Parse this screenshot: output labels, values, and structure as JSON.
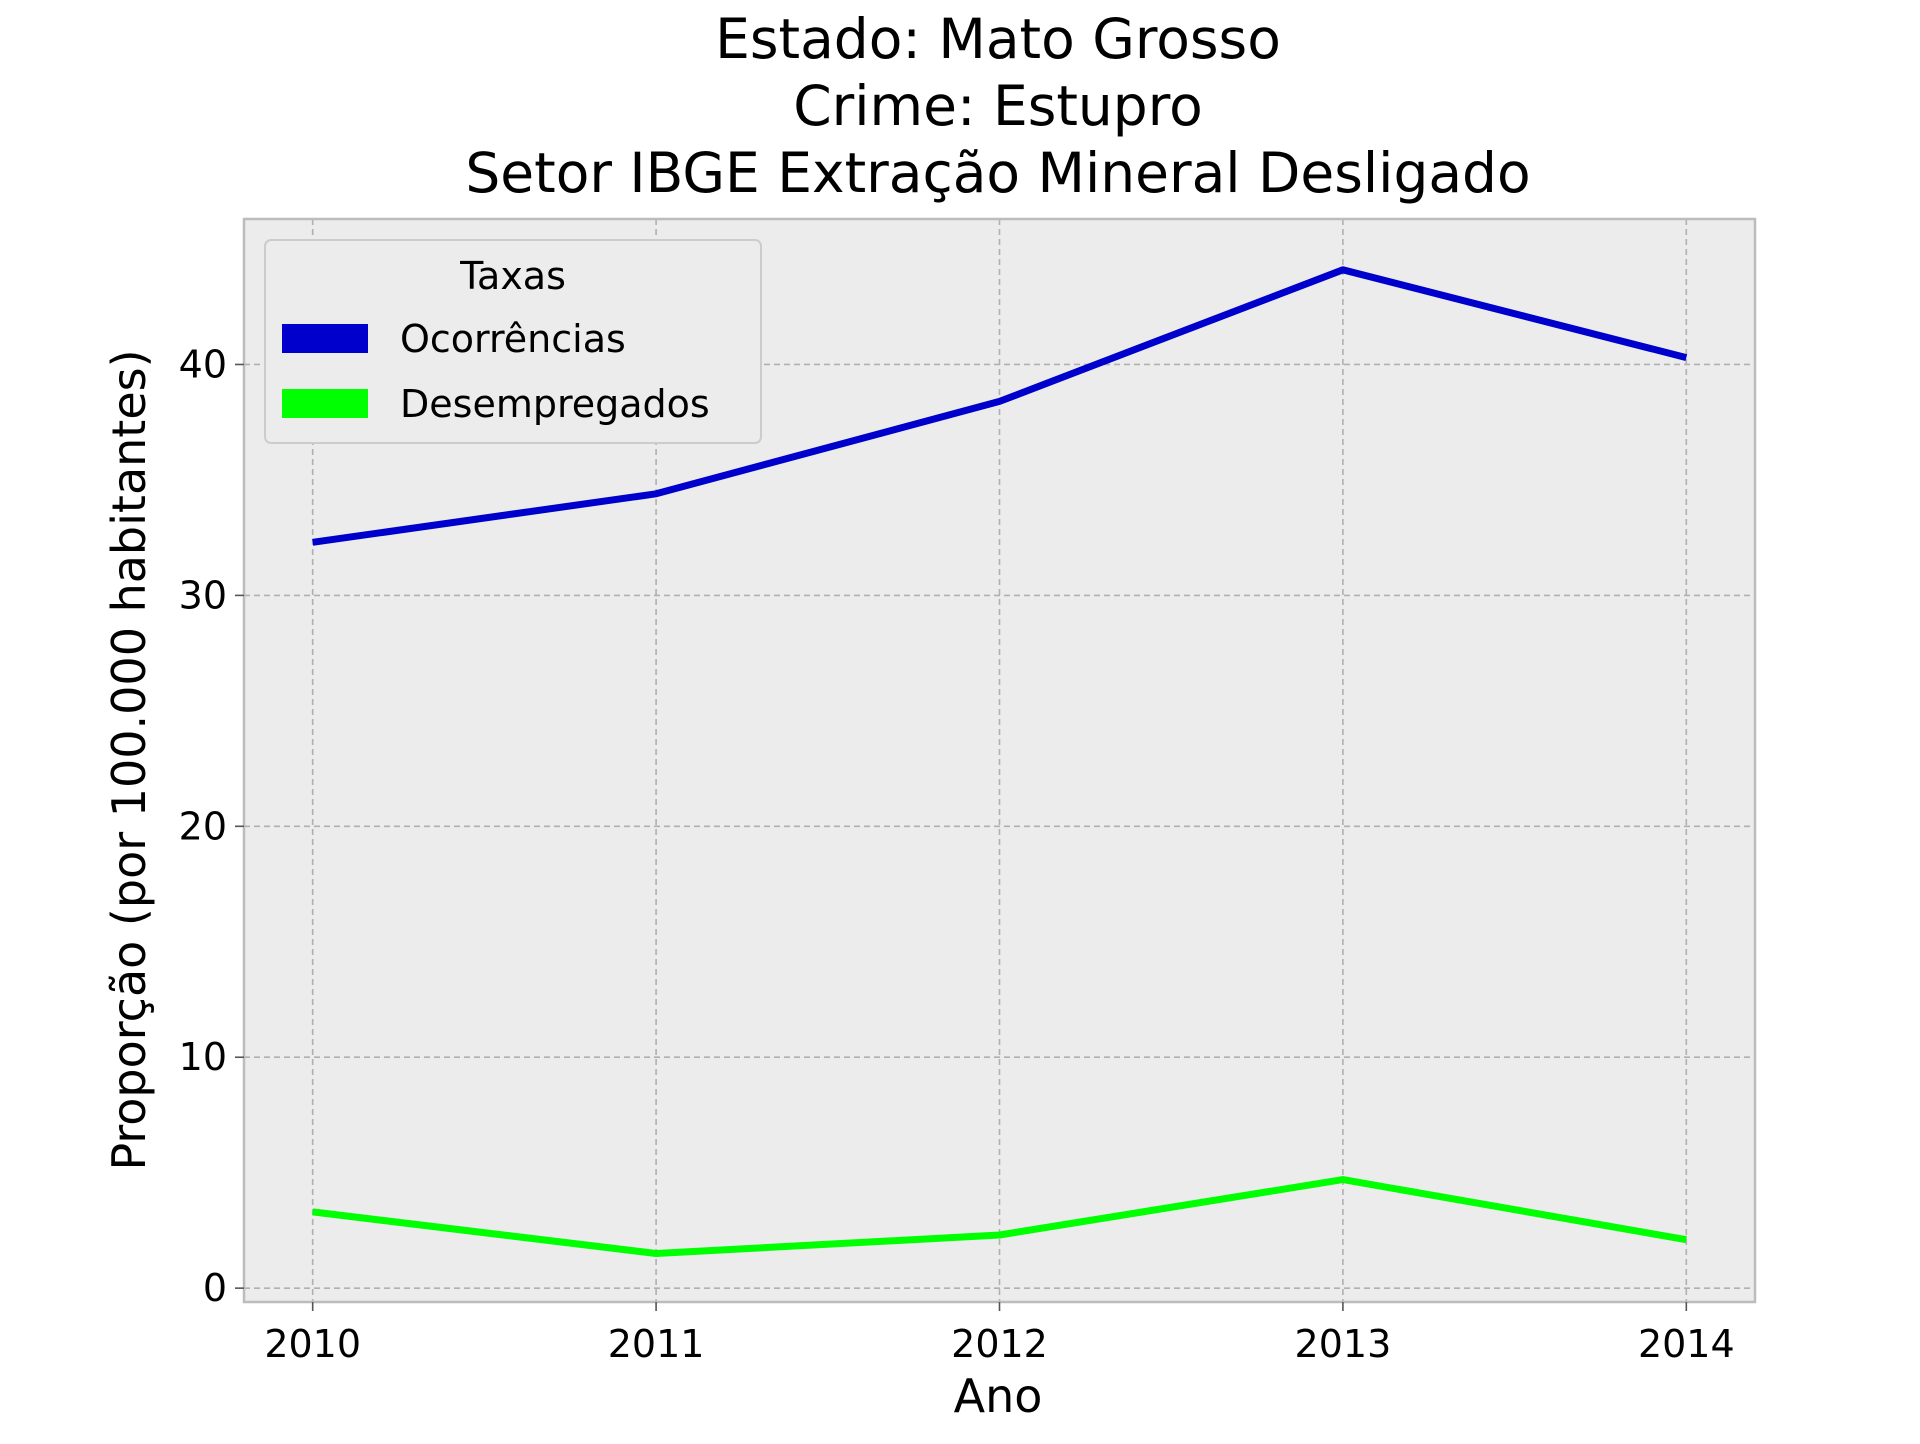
{
  "chart_data": {
    "type": "line",
    "title_lines": [
      "Estado: Mato Grosso",
      "Crime: Estupro",
      "Setor IBGE  Extração Mineral   Desligado"
    ],
    "xlabel": "Ano",
    "ylabel": "Proporção (por 100.000 habitantes)",
    "x": [
      2010,
      2011,
      2012,
      2013,
      2014
    ],
    "x_tick_labels": [
      "2010",
      "2011",
      "2012",
      "2013",
      "2014"
    ],
    "y_ticks": [
      0,
      10,
      20,
      30,
      40
    ],
    "y_tick_labels": [
      "0",
      "10",
      "20",
      "30",
      "40"
    ],
    "xlim": [
      2009.8,
      2014.2
    ],
    "ylim": [
      -0.6,
      46.3
    ],
    "grid": true,
    "legend": {
      "title": "Taxas",
      "placement": "top-left"
    },
    "series": [
      {
        "name": "Ocorrências",
        "color": "#0000cc",
        "values": [
          32.3,
          34.4,
          38.4,
          44.1,
          40.3
        ]
      },
      {
        "name": "Desempregados",
        "color": "#00ff00",
        "values": [
          3.3,
          1.5,
          2.3,
          4.7,
          2.1
        ]
      }
    ]
  }
}
